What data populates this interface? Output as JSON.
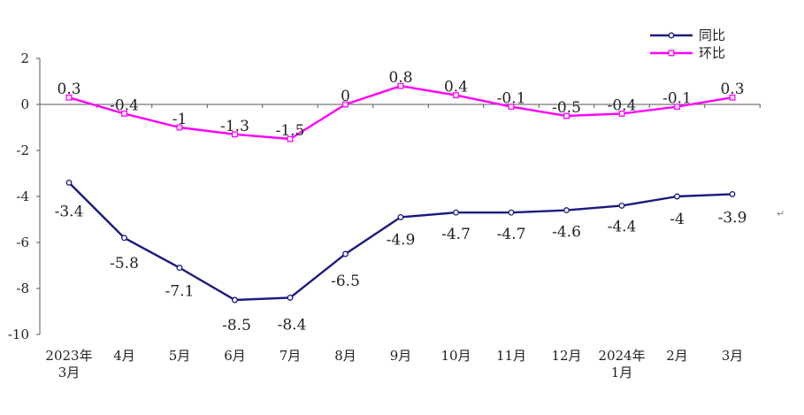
{
  "chart_data": {
    "type": "line",
    "title": "",
    "xlabel": "",
    "ylabel": "",
    "ylim": [
      -10,
      2
    ],
    "yticks": [
      2,
      0,
      -2,
      -4,
      -6,
      -8,
      -10
    ],
    "categories": [
      "2023年3月",
      "4月",
      "5月",
      "6月",
      "7月",
      "8月",
      "9月",
      "10月",
      "11月",
      "12月",
      "2024年1月",
      "2月",
      "3月"
    ],
    "category_lines": [
      [
        "2023年",
        "3月"
      ],
      [
        "4月"
      ],
      [
        "5月"
      ],
      [
        "6月"
      ],
      [
        "7月"
      ],
      [
        "8月"
      ],
      [
        "9月"
      ],
      [
        "10月"
      ],
      [
        "11月"
      ],
      [
        "12月"
      ],
      [
        "2024年",
        "1月"
      ],
      [
        "2月"
      ],
      [
        "3月"
      ]
    ],
    "series": [
      {
        "name": "同比",
        "color": "#1a1a80",
        "marker": "circle",
        "values": [
          -3.4,
          -5.8,
          -7.1,
          -8.5,
          -8.4,
          -6.5,
          -4.9,
          -4.7,
          -4.7,
          -4.6,
          -4.4,
          -4,
          -3.9
        ],
        "labels": [
          "-3.4",
          "-5.8",
          "-7.1",
          "-8.5",
          "-8.4",
          "-6.5",
          "-4.9",
          "-4.7",
          "-4.7",
          "-4.6",
          "-4.4",
          "-4",
          "-3.9"
        ]
      },
      {
        "name": "环比",
        "color": "#ff00ff",
        "marker": "square",
        "values": [
          0.3,
          -0.4,
          -1,
          -1.3,
          -1.5,
          0,
          0.8,
          0.4,
          -0.1,
          -0.5,
          -0.4,
          -0.1,
          0.3
        ],
        "labels": [
          "0.3",
          "-0.4",
          "-1",
          "-1.3",
          "-1.5",
          "0",
          "0.8",
          "0.4",
          "-0.1",
          "-0.5",
          "-0.4",
          "-0.1",
          "0.3"
        ]
      }
    ],
    "legend_position": "top-right",
    "grid": false
  },
  "corner_mark": "↵"
}
